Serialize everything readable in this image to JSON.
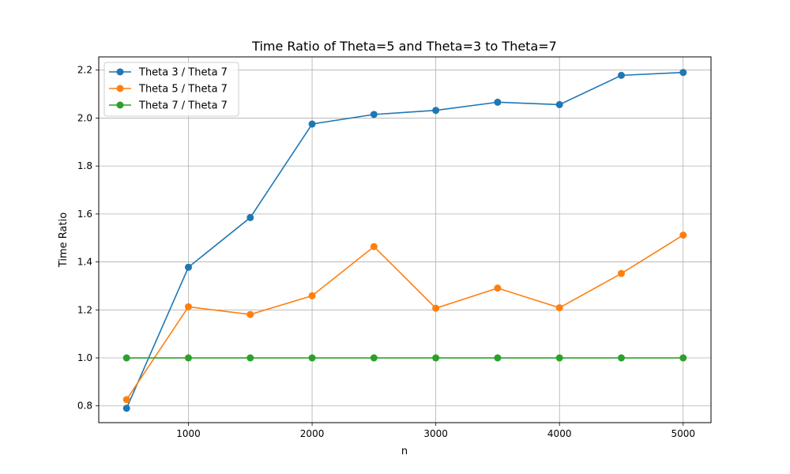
{
  "chart_data": {
    "type": "line",
    "title": "Time Ratio of Theta=5 and Theta=3 to Theta=7",
    "xlabel": "n",
    "ylabel": "Time Ratio",
    "x": [
      500,
      1000,
      1500,
      2000,
      2500,
      3000,
      3500,
      4000,
      4500,
      5000
    ],
    "xticks": [
      1000,
      2000,
      3000,
      4000,
      5000
    ],
    "yticks": [
      0.8,
      1.0,
      1.2,
      1.4,
      1.6,
      1.8,
      2.0,
      2.2
    ],
    "xlim": [
      275,
      5225
    ],
    "ylim": [
      0.73,
      2.255
    ],
    "grid": true,
    "legend_position": "top-left",
    "series": [
      {
        "name": "Theta 3 / Theta 7",
        "color": "#1f77b4",
        "marker": "circle",
        "values": [
          0.79,
          1.378,
          1.585,
          1.975,
          2.015,
          2.032,
          2.066,
          2.056,
          2.178,
          2.19
        ]
      },
      {
        "name": "Theta 5 / Theta 7",
        "color": "#ff7f0e",
        "marker": "circle",
        "values": [
          0.826,
          1.213,
          1.181,
          1.259,
          1.464,
          1.207,
          1.291,
          1.209,
          1.352,
          1.512
        ]
      },
      {
        "name": "Theta 7 / Theta 7",
        "color": "#2ca02c",
        "marker": "circle",
        "values": [
          1.0,
          1.0,
          1.0,
          1.0,
          1.0,
          1.0,
          1.0,
          1.0,
          1.0,
          1.0
        ]
      }
    ]
  }
}
